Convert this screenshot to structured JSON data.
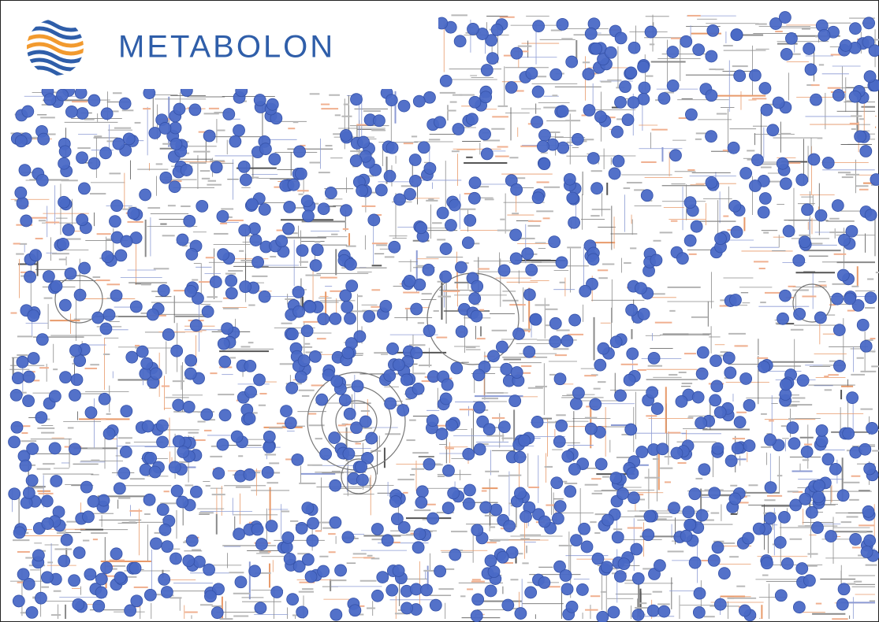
{
  "logo": {
    "text": "METABOLON"
  }
}
